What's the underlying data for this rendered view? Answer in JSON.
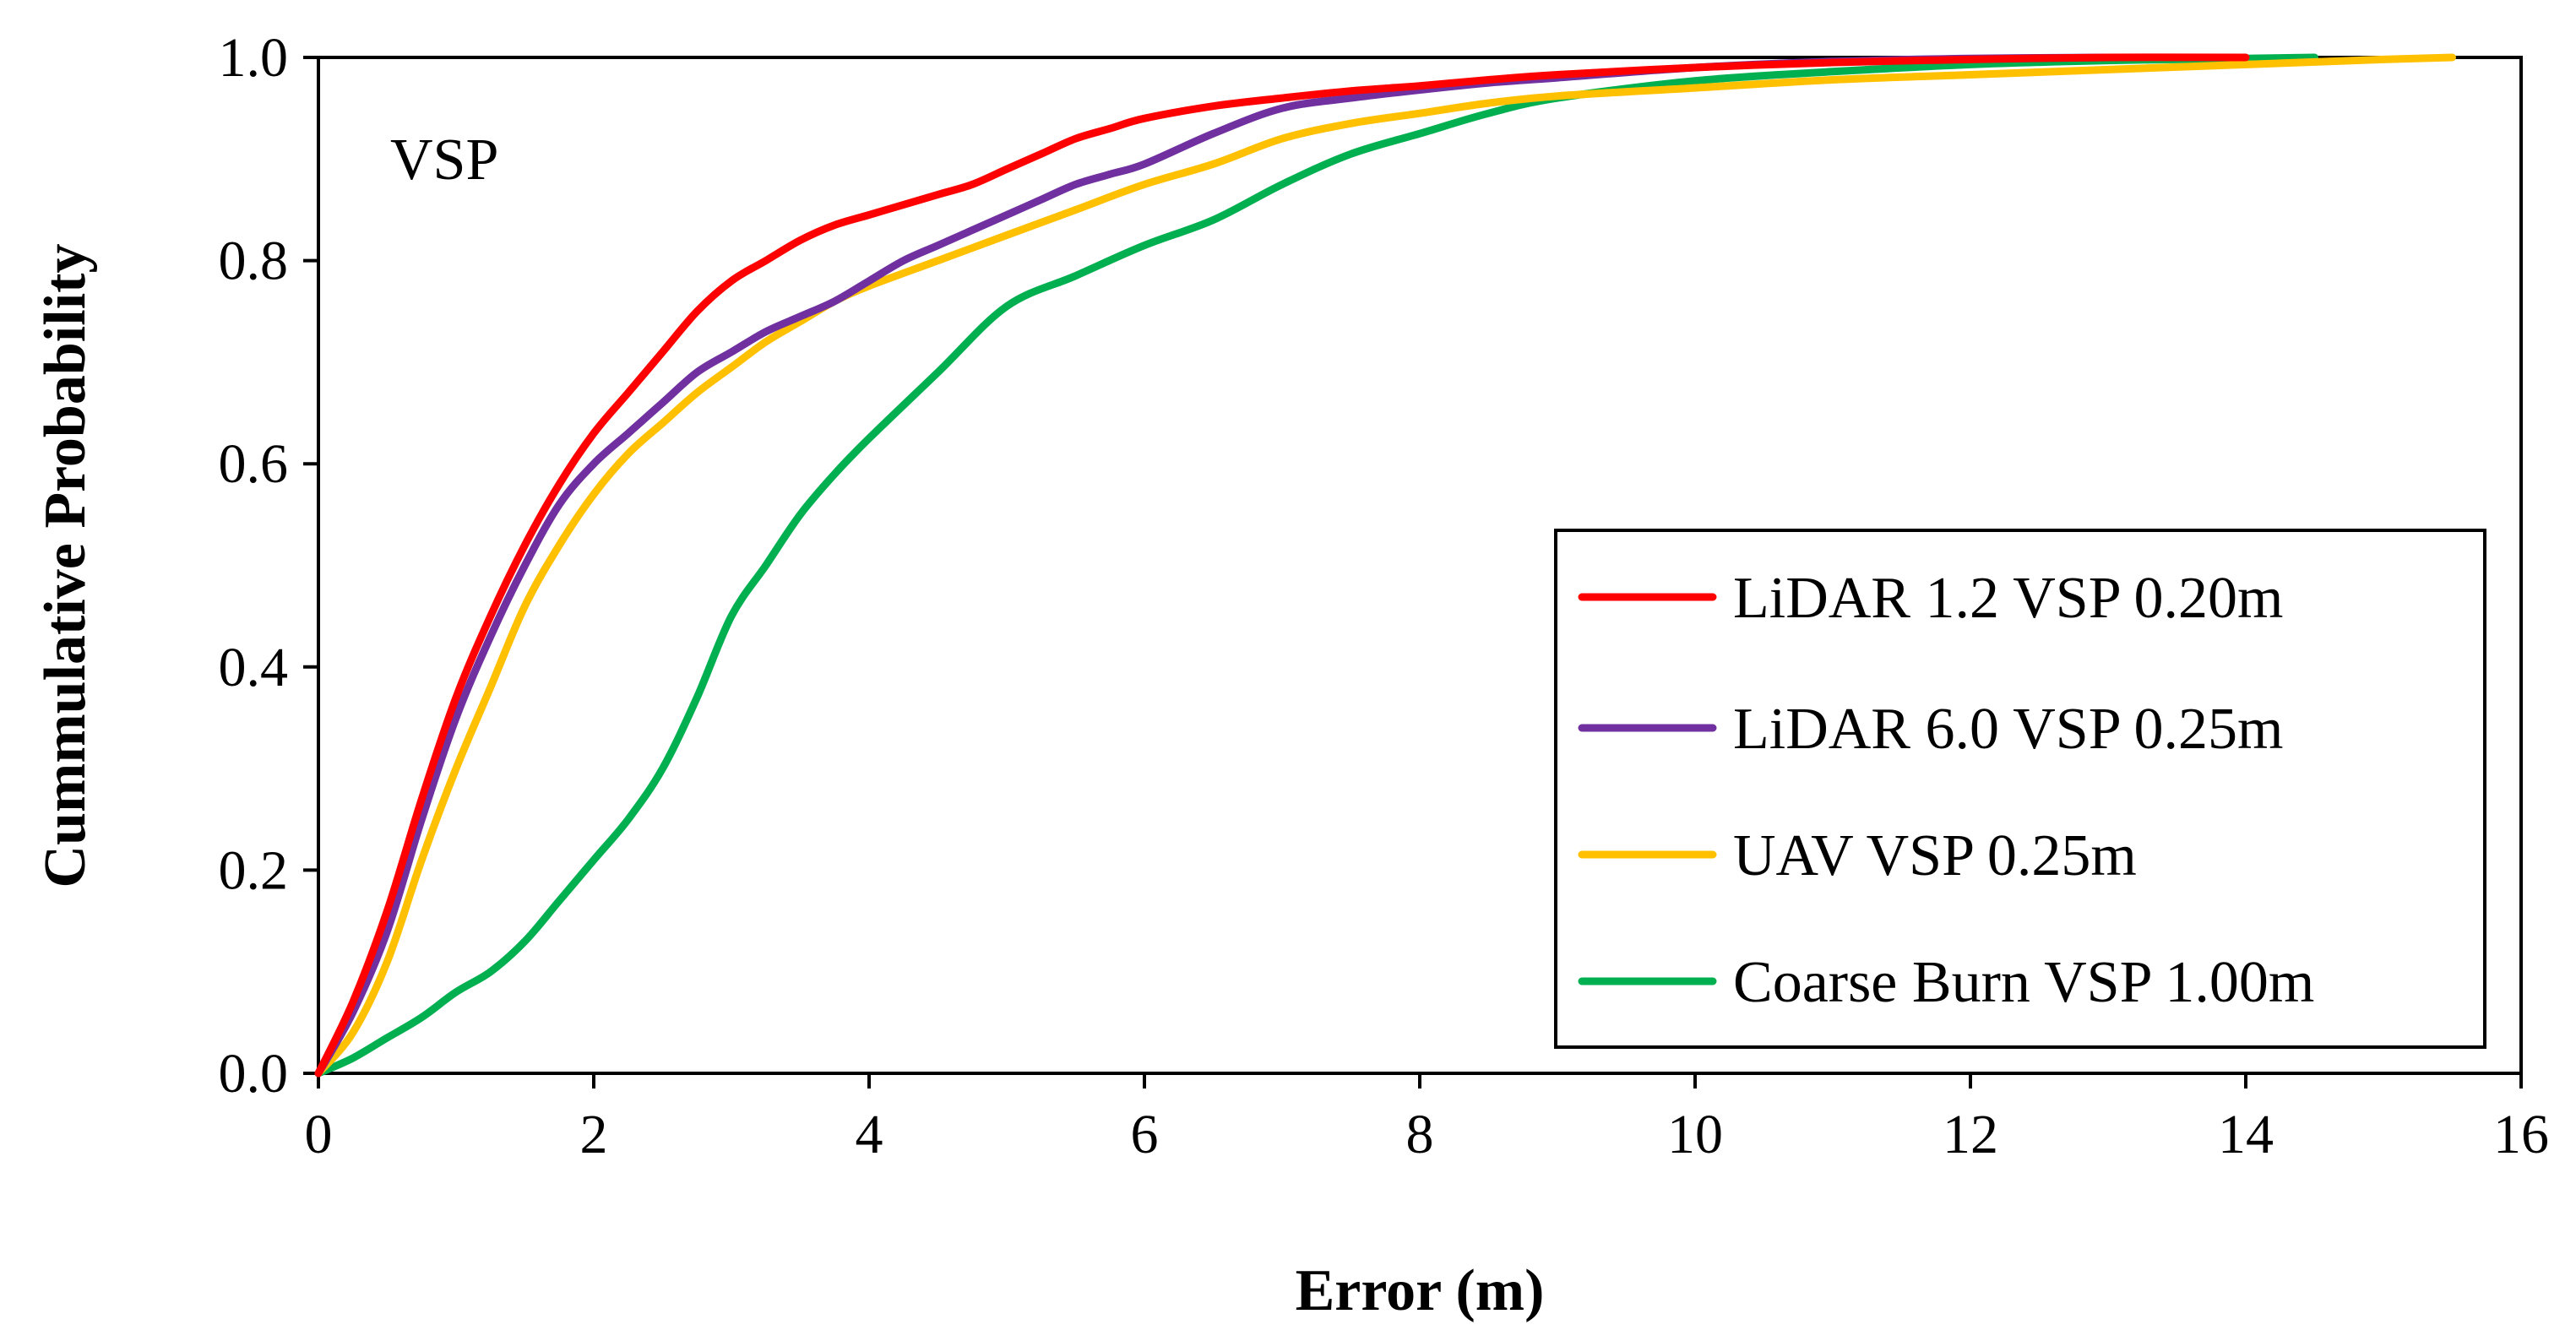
{
  "chart_data": {
    "type": "line",
    "title": "",
    "annotation": "VSP",
    "xlabel": "Error (m)",
    "ylabel": "Cummulative Probability",
    "xlim": [
      0,
      16
    ],
    "ylim": [
      0,
      1.0
    ],
    "xticks": [
      0,
      2,
      4,
      6,
      8,
      10,
      12,
      14,
      16
    ],
    "xtick_labels": [
      "0",
      "2",
      "4",
      "6",
      "8",
      "10",
      "12",
      "14",
      "16"
    ],
    "yticks": [
      0,
      0.2,
      0.4,
      0.6,
      0.8,
      1.0
    ],
    "ytick_labels": [
      "0.0",
      "0.2",
      "0.4",
      "0.6",
      "0.8",
      "1.0"
    ],
    "grid": false,
    "legend_position": "bottom-right",
    "series": [
      {
        "name": "LiDAR 1.2 VSP 0.20m",
        "color": "#FF0000",
        "x": [
          0,
          0.25,
          0.5,
          0.75,
          1.0,
          1.25,
          1.5,
          1.75,
          2.0,
          2.25,
          2.5,
          2.75,
          3.0,
          3.25,
          3.5,
          3.75,
          4.0,
          4.25,
          4.5,
          4.75,
          5.0,
          5.25,
          5.5,
          5.75,
          6.0,
          6.5,
          7.0,
          7.5,
          8.0,
          8.5,
          9.0,
          10.0,
          11.0,
          12.0,
          13.0,
          14.0
        ],
        "y": [
          0,
          0.07,
          0.16,
          0.27,
          0.37,
          0.45,
          0.52,
          0.58,
          0.63,
          0.67,
          0.71,
          0.75,
          0.78,
          0.8,
          0.82,
          0.835,
          0.845,
          0.855,
          0.865,
          0.875,
          0.89,
          0.905,
          0.92,
          0.93,
          0.94,
          0.952,
          0.96,
          0.967,
          0.972,
          0.978,
          0.983,
          0.99,
          0.995,
          0.998,
          1.0,
          1.0
        ]
      },
      {
        "name": "LiDAR 6.0 VSP 0.25m",
        "color": "#7030A0",
        "x": [
          0,
          0.25,
          0.5,
          0.75,
          1.0,
          1.25,
          1.5,
          1.75,
          2.0,
          2.25,
          2.5,
          2.75,
          3.0,
          3.25,
          3.5,
          3.75,
          4.0,
          4.25,
          4.5,
          4.75,
          5.0,
          5.25,
          5.5,
          5.75,
          6.0,
          6.5,
          7.0,
          7.5,
          8.0,
          8.5,
          9.0,
          10.0,
          11.0,
          12.0,
          13.0
        ],
        "y": [
          0,
          0.06,
          0.14,
          0.25,
          0.35,
          0.43,
          0.5,
          0.56,
          0.6,
          0.63,
          0.66,
          0.69,
          0.71,
          0.73,
          0.745,
          0.76,
          0.78,
          0.8,
          0.815,
          0.83,
          0.845,
          0.86,
          0.875,
          0.885,
          0.895,
          0.925,
          0.95,
          0.96,
          0.968,
          0.975,
          0.98,
          0.99,
          0.996,
          0.999,
          1.0
        ]
      },
      {
        "name": "UAV VSP 0.25m",
        "color": "#FFC000",
        "x": [
          0,
          0.25,
          0.5,
          0.75,
          1.0,
          1.25,
          1.5,
          1.75,
          2.0,
          2.25,
          2.5,
          2.75,
          3.0,
          3.25,
          3.5,
          3.75,
          4.0,
          4.5,
          5.0,
          5.5,
          6.0,
          6.5,
          7.0,
          7.5,
          8.0,
          8.5,
          9.0,
          10.0,
          11.0,
          12.0,
          13.0,
          14.0,
          15.0,
          15.5
        ],
        "y": [
          0,
          0.04,
          0.11,
          0.21,
          0.3,
          0.38,
          0.46,
          0.52,
          0.57,
          0.61,
          0.64,
          0.67,
          0.695,
          0.72,
          0.74,
          0.76,
          0.775,
          0.8,
          0.825,
          0.85,
          0.875,
          0.895,
          0.92,
          0.935,
          0.945,
          0.955,
          0.962,
          0.97,
          0.978,
          0.983,
          0.988,
          0.993,
          0.998,
          1.0
        ]
      },
      {
        "name": "Coarse Burn VSP 1.00m",
        "color": "#00B050",
        "x": [
          0,
          0.25,
          0.5,
          0.75,
          1.0,
          1.25,
          1.5,
          1.75,
          2.0,
          2.25,
          2.5,
          2.75,
          3.0,
          3.25,
          3.5,
          3.75,
          4.0,
          4.5,
          5.0,
          5.5,
          6.0,
          6.5,
          7.0,
          7.5,
          8.0,
          8.5,
          9.0,
          10.0,
          11.0,
          12.0,
          13.0,
          14.0,
          14.5
        ],
        "y": [
          0,
          0.015,
          0.035,
          0.055,
          0.08,
          0.1,
          0.13,
          0.17,
          0.21,
          0.25,
          0.3,
          0.37,
          0.45,
          0.5,
          0.55,
          0.59,
          0.625,
          0.69,
          0.755,
          0.785,
          0.815,
          0.84,
          0.875,
          0.905,
          0.925,
          0.945,
          0.96,
          0.977,
          0.986,
          0.993,
          0.997,
          0.999,
          1.0
        ]
      }
    ]
  }
}
